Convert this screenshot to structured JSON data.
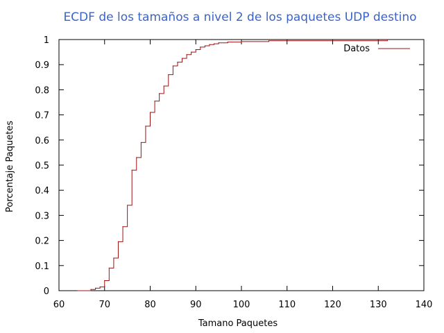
{
  "chart_data": {
    "type": "line",
    "title": "ECDF de los tamaños a nivel 2 de los paquetes UDP destino",
    "xlabel": "Tamano Paquetes",
    "ylabel": "Porcentaje Paquetes",
    "xlim": [
      60,
      140
    ],
    "ylim": [
      0,
      1
    ],
    "xticks": [
      60,
      70,
      80,
      90,
      100,
      110,
      120,
      130,
      140
    ],
    "yticks": [
      0,
      0.1,
      0.2,
      0.3,
      0.4,
      0.5,
      0.6,
      0.7,
      0.8,
      0.9,
      1
    ],
    "xtick_labels": [
      "60",
      "70",
      "80",
      "90",
      "100",
      "110",
      "120",
      "130",
      "140"
    ],
    "ytick_labels": [
      "0",
      "0.1",
      "0.2",
      "0.3",
      "0.4",
      "0.5",
      "0.6",
      "0.7",
      "0.8",
      "0.9",
      "1"
    ],
    "grid": false,
    "legend_position": "top-right",
    "line_style": "step",
    "series": [
      {
        "name": "Datos",
        "color": "#a01010",
        "x": [
          64,
          67,
          68,
          69,
          70,
          71,
          72,
          73,
          74,
          75,
          76,
          77,
          78,
          79,
          80,
          81,
          82,
          83,
          84,
          85,
          86,
          87,
          88,
          89,
          90,
          91,
          92,
          93,
          94,
          95,
          97,
          100,
          106,
          132
        ],
        "y": [
          0,
          0.005,
          0.01,
          0.015,
          0.04,
          0.09,
          0.13,
          0.195,
          0.255,
          0.34,
          0.48,
          0.53,
          0.59,
          0.655,
          0.71,
          0.755,
          0.785,
          0.815,
          0.86,
          0.895,
          0.91,
          0.925,
          0.94,
          0.95,
          0.96,
          0.97,
          0.975,
          0.98,
          0.983,
          0.987,
          0.99,
          0.992,
          0.995,
          1.0
        ]
      }
    ]
  }
}
